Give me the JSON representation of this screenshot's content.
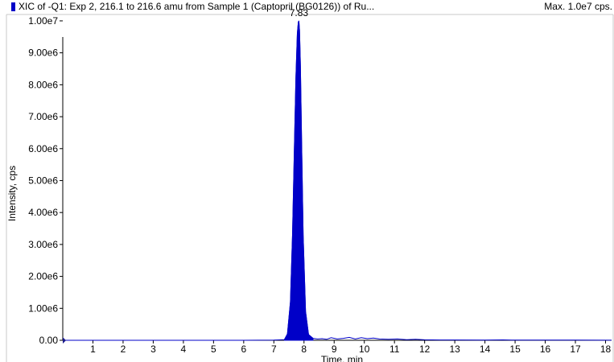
{
  "header": {
    "title": "XIC of -Q1: Exp 2, 216.1 to 216.6 amu from Sample 1 (Captopril (BG0126)) of Ru...",
    "max_label": "Max. 1.0e7 cps."
  },
  "colors": {
    "series": "#0000c8",
    "axis": "#000000",
    "frame": "#c8c8c8"
  },
  "chart_data": {
    "type": "area",
    "title": "XIC of -Q1: Exp 2, 216.1 to 216.6 amu from Sample 1 (Captopril (BG0126)) of Ru...",
    "xlabel": "Time, min",
    "ylabel": "Intensity, cps",
    "xlim": [
      0,
      18.2
    ],
    "ylim": [
      0,
      10200000
    ],
    "grid": false,
    "x_ticks": [
      1,
      2,
      3,
      4,
      5,
      6,
      7,
      8,
      9,
      10,
      11,
      12,
      13,
      14,
      15,
      16,
      17,
      18
    ],
    "x_tick_labels": [
      "1",
      "2",
      "3",
      "4",
      "5",
      "6",
      "7",
      "8",
      "9",
      "10",
      "11",
      "12",
      "13",
      "14",
      "15",
      "16",
      "17",
      "18"
    ],
    "y_ticks": [
      0,
      1000000,
      2000000,
      3000000,
      4000000,
      5000000,
      6000000,
      7000000,
      8000000,
      9000000,
      10000000
    ],
    "y_tick_labels": [
      "0.00",
      "1.00e6",
      "2.00e6",
      "3.00e6",
      "4.00e6",
      "5.00e6",
      "6.00e6",
      "7.00e6",
      "8.00e6",
      "9.00e6",
      "1.00e7"
    ],
    "peak_label": {
      "x": 7.83,
      "y": 10000000,
      "text": "7.83"
    },
    "series": [
      {
        "name": "XIC",
        "x": [
          0.0,
          1.0,
          2.0,
          3.0,
          4.0,
          5.0,
          6.0,
          7.0,
          7.35,
          7.45,
          7.55,
          7.62,
          7.68,
          7.73,
          7.78,
          7.81,
          7.83,
          7.85,
          7.88,
          7.92,
          7.97,
          8.05,
          8.15,
          8.3,
          8.45,
          8.6,
          8.75,
          8.9,
          9.1,
          9.3,
          9.5,
          9.7,
          9.9,
          10.1,
          10.3,
          10.5,
          10.8,
          11.1,
          11.4,
          11.7,
          12.0,
          12.5,
          13.0,
          14.0,
          14.6,
          15.0,
          16.0,
          17.0,
          18.0,
          18.2
        ],
        "y": [
          0,
          0,
          0,
          0,
          0,
          0,
          0,
          5000,
          20000,
          200000,
          1200000,
          3300000,
          6000000,
          8200000,
          9600000,
          9950000,
          10000000,
          9700000,
          8600000,
          6200000,
          3300000,
          900000,
          180000,
          60000,
          40000,
          50000,
          30000,
          80000,
          40000,
          60000,
          90000,
          40000,
          80000,
          50000,
          70000,
          40000,
          30000,
          40000,
          20000,
          30000,
          15000,
          10000,
          10000,
          8000,
          12000,
          6000,
          5000,
          4000,
          3000,
          3000
        ]
      }
    ]
  }
}
